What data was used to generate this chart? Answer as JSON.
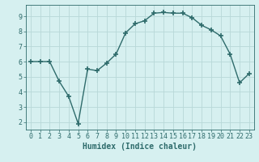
{
  "x": [
    0,
    1,
    2,
    3,
    4,
    5,
    6,
    7,
    8,
    9,
    10,
    11,
    12,
    13,
    14,
    15,
    16,
    17,
    18,
    19,
    20,
    21,
    22,
    23
  ],
  "y": [
    6.0,
    6.0,
    6.0,
    4.7,
    3.7,
    1.9,
    5.5,
    5.4,
    5.9,
    6.5,
    7.9,
    8.5,
    8.7,
    9.2,
    9.25,
    9.2,
    9.2,
    8.9,
    8.4,
    8.1,
    7.7,
    6.5,
    4.6,
    5.2
  ],
  "line_color": "#2e6b6b",
  "marker": "+",
  "marker_size": 4,
  "marker_lw": 1.2,
  "background_color": "#d6f0f0",
  "grid_color": "#b8d8d8",
  "xlabel": "Humidex (Indice chaleur)",
  "xlim": [
    -0.5,
    23.5
  ],
  "ylim": [
    1.5,
    9.75
  ],
  "xticks": [
    0,
    1,
    2,
    3,
    4,
    5,
    6,
    7,
    8,
    9,
    10,
    11,
    12,
    13,
    14,
    15,
    16,
    17,
    18,
    19,
    20,
    21,
    22,
    23
  ],
  "yticks": [
    2,
    3,
    4,
    5,
    6,
    7,
    8,
    9
  ],
  "tick_color": "#2e6b6b",
  "label_color": "#2e6b6b",
  "font_size": 6.0,
  "xlabel_fontsize": 7.0,
  "line_width": 1.0
}
